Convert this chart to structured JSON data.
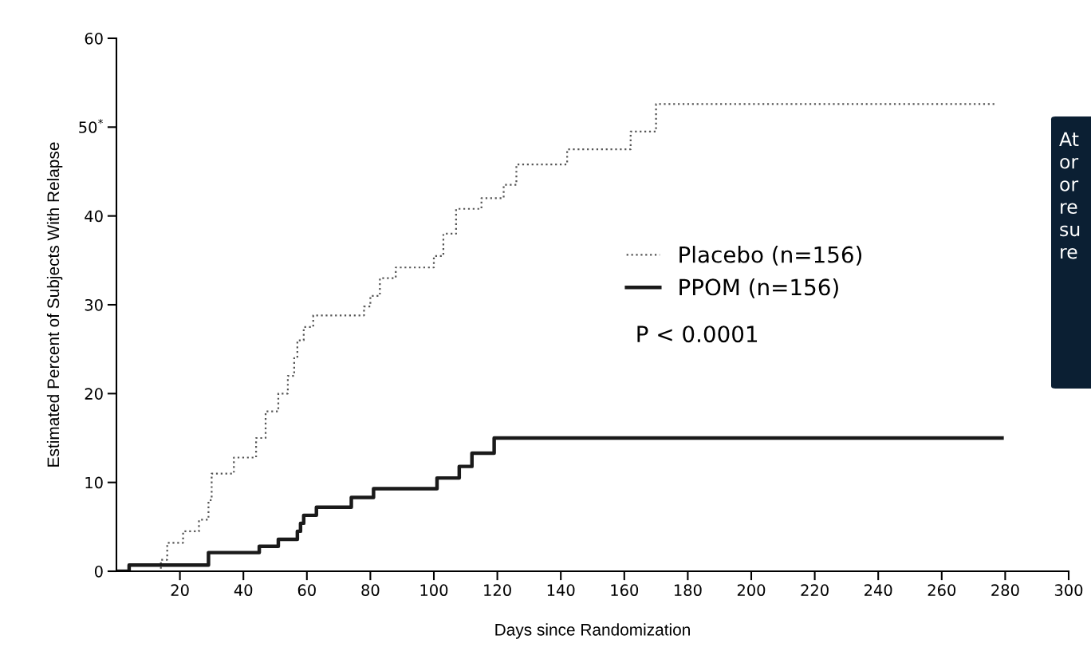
{
  "chart_data": {
    "type": "step",
    "xlabel": "Days since Randomization",
    "ylabel": "Estimated Percent of Subjects With Relapse",
    "xlim": [
      0,
      300
    ],
    "xticks": [
      20,
      40,
      60,
      80,
      100,
      120,
      140,
      160,
      180,
      200,
      220,
      240,
      260,
      280,
      300
    ],
    "ylim": [
      0,
      60
    ],
    "yticks": [
      0,
      10,
      20,
      30,
      40,
      {
        "value": 50,
        "label": "50$^{*}$"
      },
      60
    ],
    "grid": false,
    "legend": "center",
    "series": [
      {
        "name": "Placebo (n=156)",
        "color": "#555555",
        "line_style": "dotted",
        "x": [
          0,
          14,
          16,
          21,
          26,
          29,
          30,
          37,
          44,
          47,
          51,
          54,
          56,
          57,
          59,
          62,
          78,
          80,
          83,
          88,
          100,
          103,
          107,
          115,
          122,
          126,
          142,
          162,
          170,
          277
        ],
        "values": [
          0,
          1.3,
          3.2,
          4.5,
          5.8,
          8,
          11,
          12.8,
          15,
          18,
          20,
          22,
          24,
          26,
          27.5,
          28.8,
          29.8,
          31,
          33,
          34.2,
          35.5,
          38,
          40.8,
          42,
          43.5,
          45.8,
          47.5,
          49.5,
          52.6,
          52.6
        ]
      },
      {
        "name": "PPOM (n=156)",
        "color": "#1a1a1a",
        "line_style": "solid",
        "x": [
          0,
          4,
          29,
          45,
          51,
          57,
          58,
          59,
          63,
          74,
          81,
          101,
          108,
          112,
          119,
          279
        ],
        "values": [
          0,
          0.7,
          2.1,
          2.8,
          3.6,
          4.5,
          5.4,
          6.3,
          7.2,
          8.3,
          9.3,
          10.5,
          11.8,
          13.3,
          15,
          15
        ]
      }
    ],
    "annotations": [
      "P < 0.0001",
      "At\nor\nor\nre\nsu\nre"
    ]
  }
}
